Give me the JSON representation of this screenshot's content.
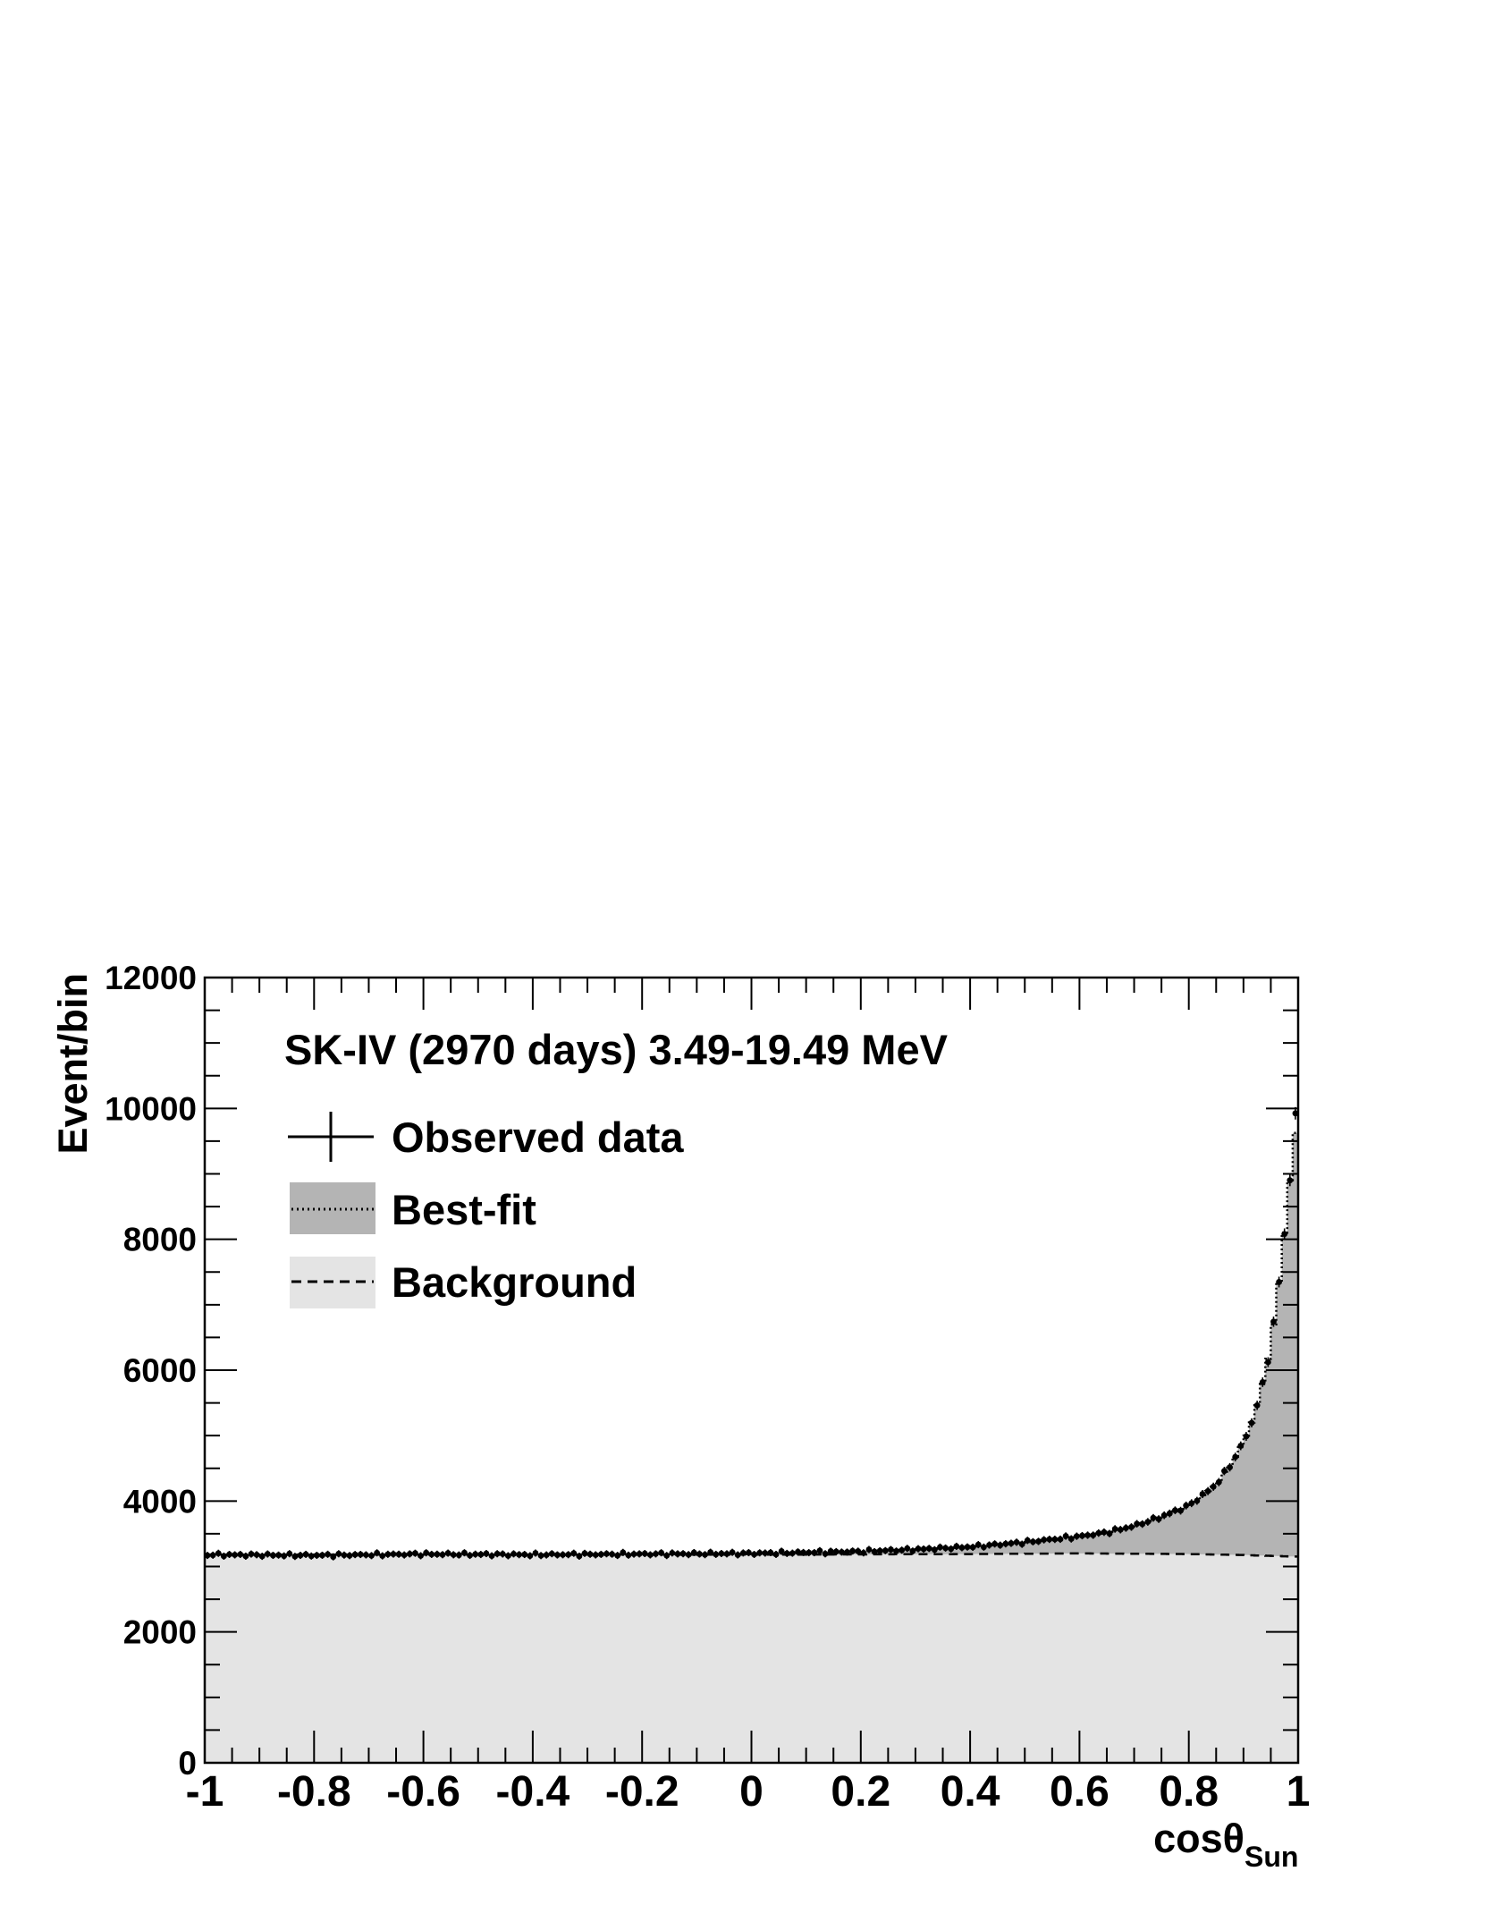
{
  "chart_data": {
    "type": "area",
    "title": "SK-IV (2970 days) 3.49-19.49 MeV",
    "xlabel": "cosθ",
    "xlabel_subscript": "Sun",
    "ylabel": "Event/bin",
    "xlim": [
      -1,
      1
    ],
    "ylim": [
      0,
      12000
    ],
    "x_ticks": [
      "-1",
      "-0.8",
      "-0.6",
      "-0.4",
      "-0.2",
      "0",
      "0.2",
      "0.4",
      "0.6",
      "0.8",
      "1"
    ],
    "y_ticks": [
      "0",
      "2000",
      "4000",
      "6000",
      "8000",
      "10000",
      "12000"
    ],
    "n_bins": 200,
    "legend": {
      "position": "top-left",
      "entries": [
        "Observed data",
        "Best-fit",
        "Background"
      ]
    },
    "colors": {
      "best_fit_fill": "#b4b4b4",
      "background_fill": "#e4e4e4",
      "markers": "#000000"
    },
    "series": [
      {
        "name": "Observed data",
        "style": "markers",
        "points": [
          [
            -0.995,
            3180
          ],
          [
            -0.8,
            3170
          ],
          [
            -0.6,
            3190
          ],
          [
            -0.4,
            3180
          ],
          [
            -0.2,
            3190
          ],
          [
            0.0,
            3200
          ],
          [
            0.2,
            3230
          ],
          [
            0.3,
            3260
          ],
          [
            0.4,
            3300
          ],
          [
            0.5,
            3370
          ],
          [
            0.6,
            3460
          ],
          [
            0.65,
            3520
          ],
          [
            0.7,
            3620
          ],
          [
            0.75,
            3760
          ],
          [
            0.8,
            3930
          ],
          [
            0.85,
            4250
          ],
          [
            0.88,
            4600
          ],
          [
            0.9,
            4900
          ],
          [
            0.92,
            5300
          ],
          [
            0.94,
            5950
          ],
          [
            0.95,
            6400
          ],
          [
            0.96,
            7000
          ],
          [
            0.97,
            7700
          ],
          [
            0.98,
            8500
          ],
          [
            0.99,
            9300
          ],
          [
            0.995,
            9900
          ]
        ]
      },
      {
        "name": "Best-fit",
        "style": "dotted line, dark grey fill",
        "points": [
          [
            -1.0,
            3180
          ],
          [
            -0.5,
            3180
          ],
          [
            0.0,
            3190
          ],
          [
            0.2,
            3230
          ],
          [
            0.3,
            3260
          ],
          [
            0.4,
            3300
          ],
          [
            0.5,
            3370
          ],
          [
            0.6,
            3460
          ],
          [
            0.65,
            3520
          ],
          [
            0.7,
            3620
          ],
          [
            0.75,
            3760
          ],
          [
            0.8,
            3930
          ],
          [
            0.85,
            4250
          ],
          [
            0.88,
            4600
          ],
          [
            0.9,
            4900
          ],
          [
            0.92,
            5300
          ],
          [
            0.94,
            5950
          ],
          [
            0.95,
            6400
          ],
          [
            0.96,
            7000
          ],
          [
            0.97,
            7700
          ],
          [
            0.98,
            8500
          ],
          [
            0.99,
            9300
          ],
          [
            1.0,
            9950
          ]
        ]
      },
      {
        "name": "Background",
        "style": "dashed line, light grey fill",
        "points": [
          [
            -1.0,
            3180
          ],
          [
            -0.5,
            3180
          ],
          [
            0.0,
            3180
          ],
          [
            0.4,
            3190
          ],
          [
            0.6,
            3200
          ],
          [
            0.8,
            3190
          ],
          [
            0.9,
            3175
          ],
          [
            1.0,
            3150
          ]
        ]
      }
    ]
  }
}
